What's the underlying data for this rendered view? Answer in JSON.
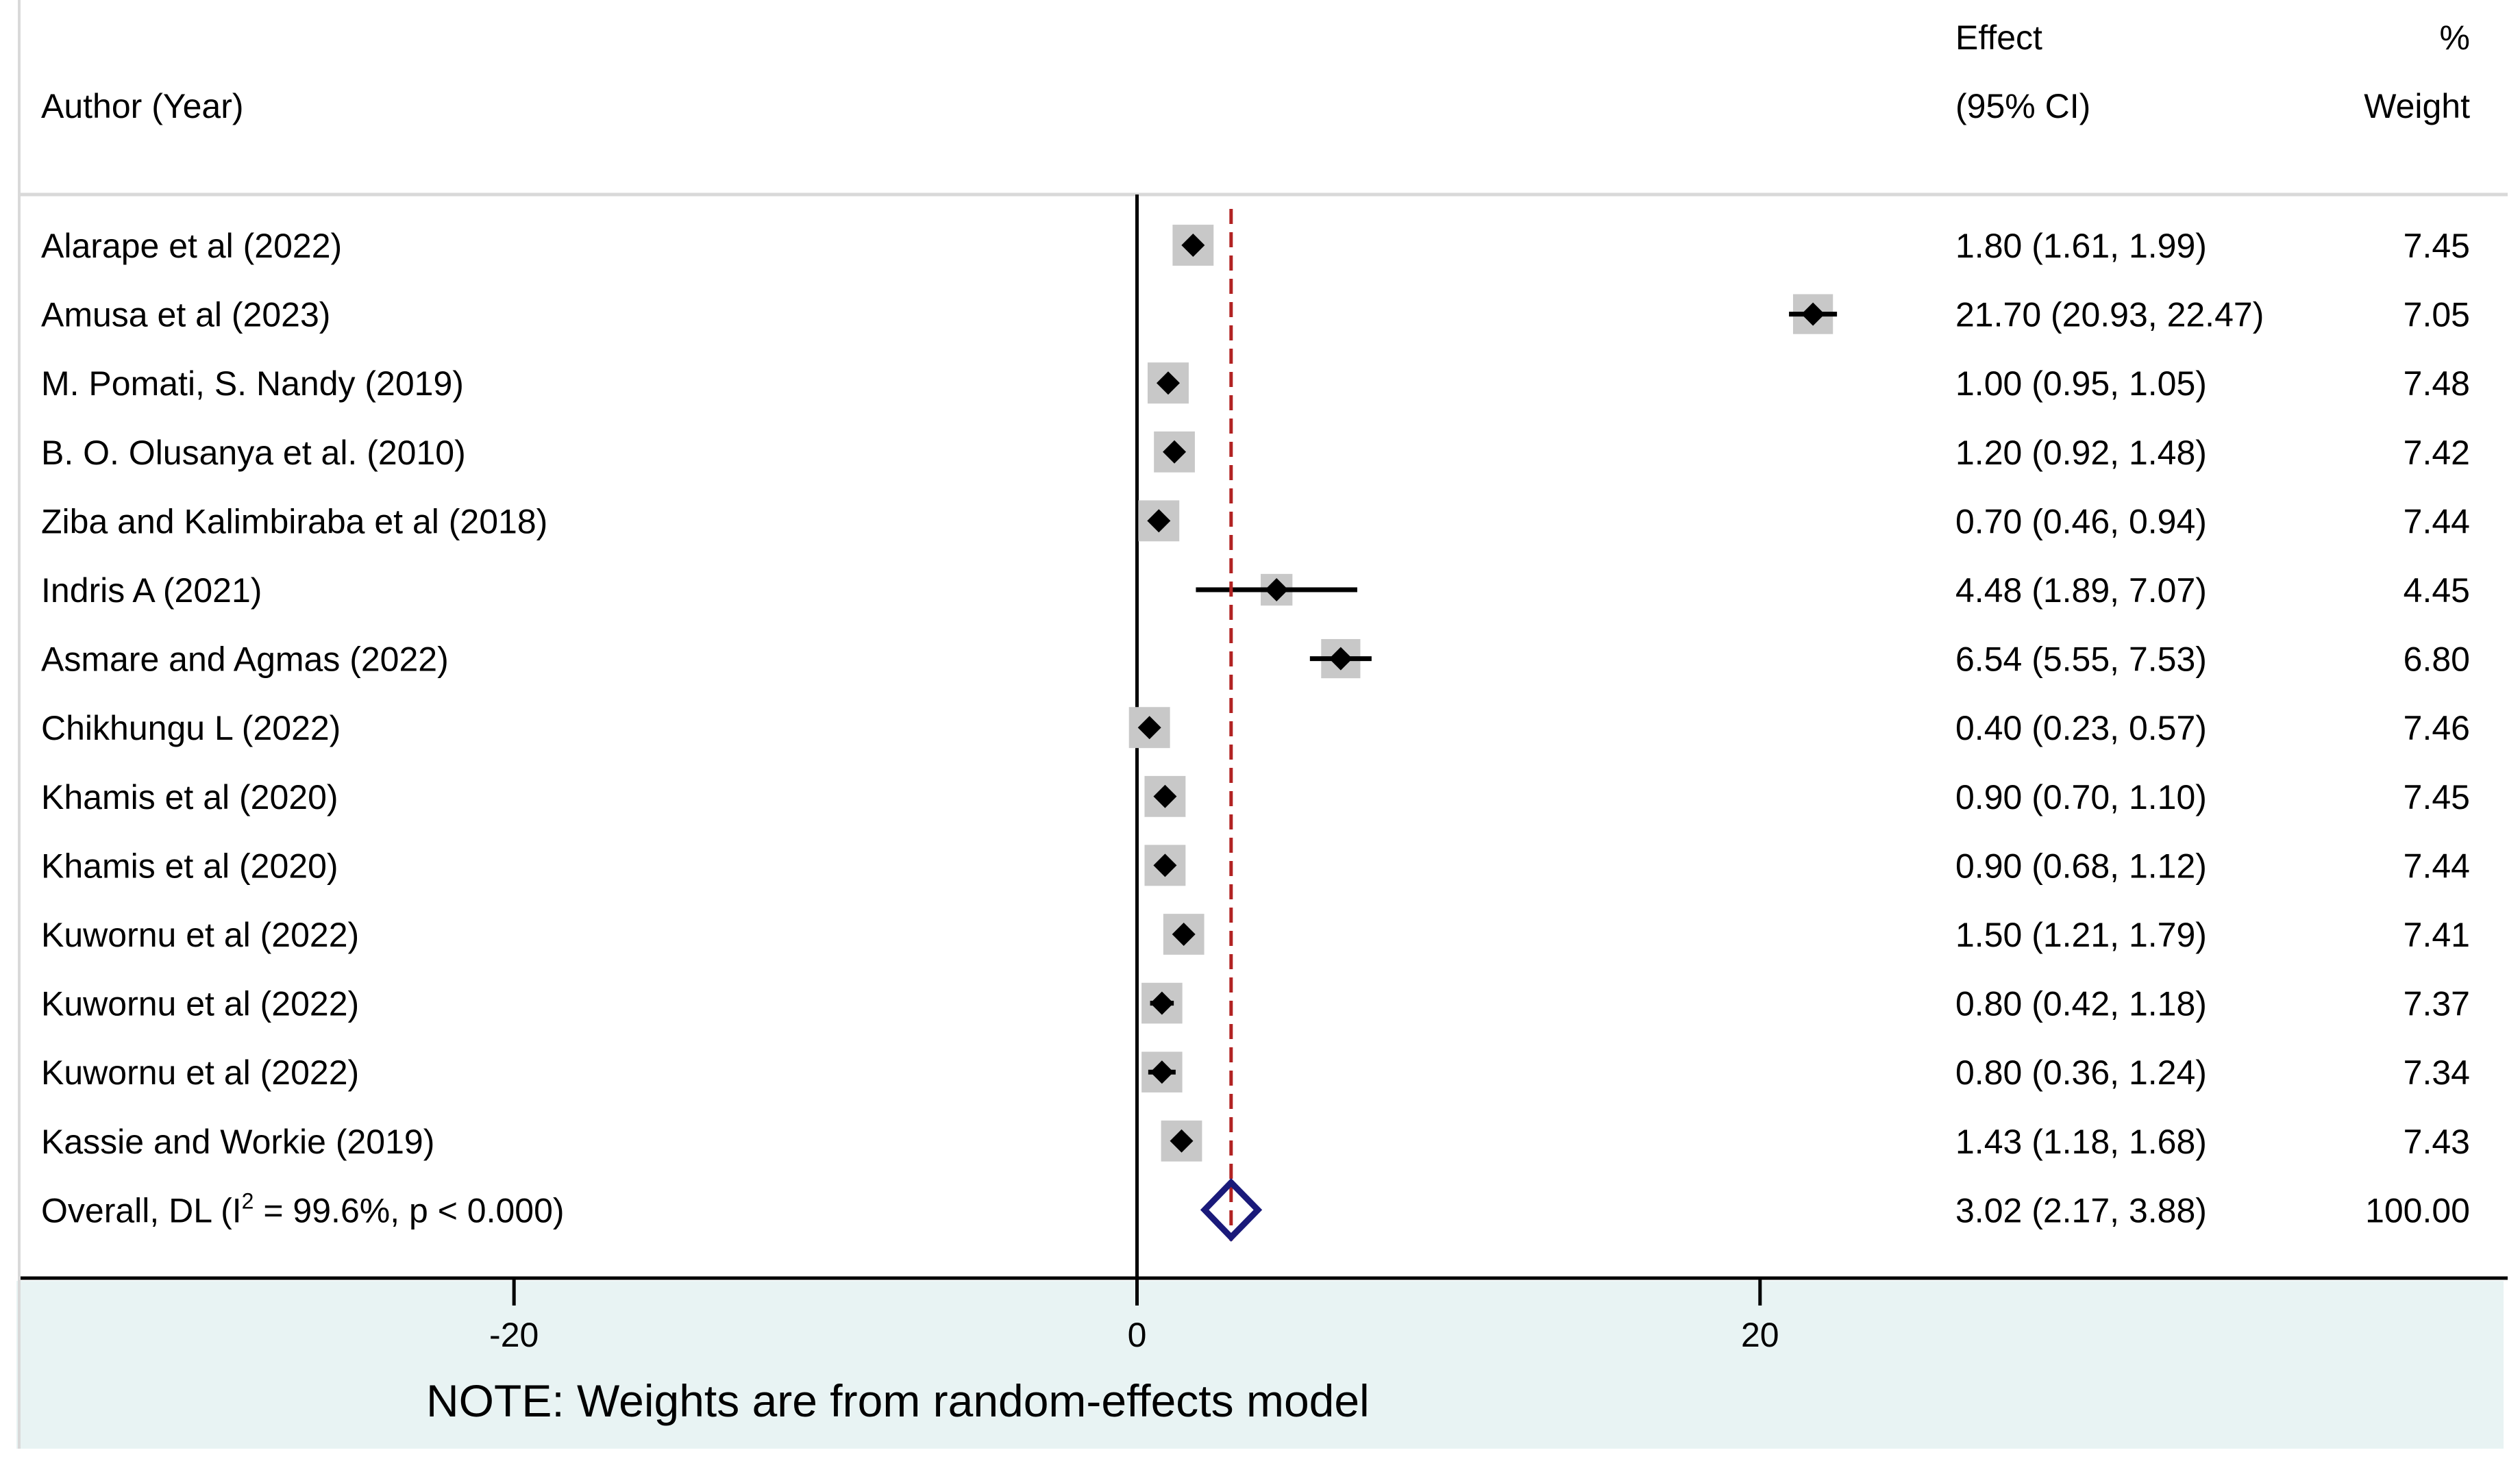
{
  "chart_data": {
    "type": "forest",
    "headers": {
      "author": "Author (Year)",
      "effect_line1": "Effect",
      "effect_line2": "(95% CI)",
      "weight_line1": "%",
      "weight_line2": "Weight"
    },
    "studies": [
      {
        "label": "Alarape et al (2022)",
        "effect": 1.8,
        "lower": 1.61,
        "upper": 1.99,
        "ci_text": "1.80 (1.61, 1.99)",
        "weight": 7.45,
        "weight_text": "7.45"
      },
      {
        "label": "Amusa et al (2023)",
        "effect": 21.7,
        "lower": 20.93,
        "upper": 22.47,
        "ci_text": "21.70 (20.93, 22.47)",
        "weight": 7.05,
        "weight_text": "7.05"
      },
      {
        "label": "M. Pomati, S. Nandy (2019)",
        "effect": 1.0,
        "lower": 0.95,
        "upper": 1.05,
        "ci_text": "1.00 (0.95, 1.05)",
        "weight": 7.48,
        "weight_text": "7.48"
      },
      {
        "label": "B. O. Olusanya et al. (2010)",
        "effect": 1.2,
        "lower": 0.92,
        "upper": 1.48,
        "ci_text": "1.20 (0.92, 1.48)",
        "weight": 7.42,
        "weight_text": "7.42"
      },
      {
        "label": "Ziba and Kalimbiraba et al (2018)",
        "effect": 0.7,
        "lower": 0.46,
        "upper": 0.94,
        "ci_text": "0.70 (0.46, 0.94)",
        "weight": 7.44,
        "weight_text": "7.44"
      },
      {
        "label": "Indris A (2021)",
        "effect": 4.48,
        "lower": 1.89,
        "upper": 7.07,
        "ci_text": "4.48 (1.89, 7.07)",
        "weight": 4.45,
        "weight_text": "4.45"
      },
      {
        "label": "Asmare and Agmas (2022)",
        "effect": 6.54,
        "lower": 5.55,
        "upper": 7.53,
        "ci_text": "6.54 (5.55, 7.53)",
        "weight": 6.8,
        "weight_text": "6.80"
      },
      {
        "label": "Chikhungu L (2022)",
        "effect": 0.4,
        "lower": 0.23,
        "upper": 0.57,
        "ci_text": "0.40 (0.23, 0.57)",
        "weight": 7.46,
        "weight_text": "7.46"
      },
      {
        "label": "Khamis et al (2020)",
        "effect": 0.9,
        "lower": 0.7,
        "upper": 1.1,
        "ci_text": "0.90 (0.70, 1.10)",
        "weight": 7.45,
        "weight_text": "7.45"
      },
      {
        "label": "Khamis et al (2020)",
        "effect": 0.9,
        "lower": 0.68,
        "upper": 1.12,
        "ci_text": "0.90 (0.68, 1.12)",
        "weight": 7.44,
        "weight_text": "7.44"
      },
      {
        "label": "Kuwornu et al (2022)",
        "effect": 1.5,
        "lower": 1.21,
        "upper": 1.79,
        "ci_text": "1.50 (1.21, 1.79)",
        "weight": 7.41,
        "weight_text": "7.41"
      },
      {
        "label": "Kuwornu et al (2022)",
        "effect": 0.8,
        "lower": 0.42,
        "upper": 1.18,
        "ci_text": "0.80 (0.42, 1.18)",
        "weight": 7.37,
        "weight_text": "7.37"
      },
      {
        "label": "Kuwornu et al (2022)",
        "effect": 0.8,
        "lower": 0.36,
        "upper": 1.24,
        "ci_text": "0.80 (0.36, 1.24)",
        "weight": 7.34,
        "weight_text": "7.34"
      },
      {
        "label": "Kassie and Workie (2019)",
        "effect": 1.43,
        "lower": 1.18,
        "upper": 1.68,
        "ci_text": "1.43 (1.18, 1.68)",
        "weight": 7.43,
        "weight_text": "7.43"
      }
    ],
    "overall": {
      "label_prefix": "Overall, DL (I",
      "label_sup": "2",
      "label_suffix": " = 99.6%, p < 0.000)",
      "effect": 3.02,
      "lower": 2.17,
      "upper": 3.88,
      "ci_text": "3.02 (2.17, 3.88)",
      "weight": 100.0,
      "weight_text": "100.00"
    },
    "x_ticks": [
      -20,
      0,
      20
    ],
    "x_tick_labels": [
      "-20",
      "0",
      "20"
    ],
    "xlim": [
      -36.5,
      44
    ],
    "null_line": 0,
    "note": "NOTE: Weights are from random-effects model",
    "colors": {
      "marker": "#000000",
      "weight_box": "#c8c8c8",
      "overall_line": "#b22222",
      "overall_diamond": "#1a1a7a",
      "note_band": "#e8f3f3",
      "separator": "#d9d9d9"
    }
  }
}
